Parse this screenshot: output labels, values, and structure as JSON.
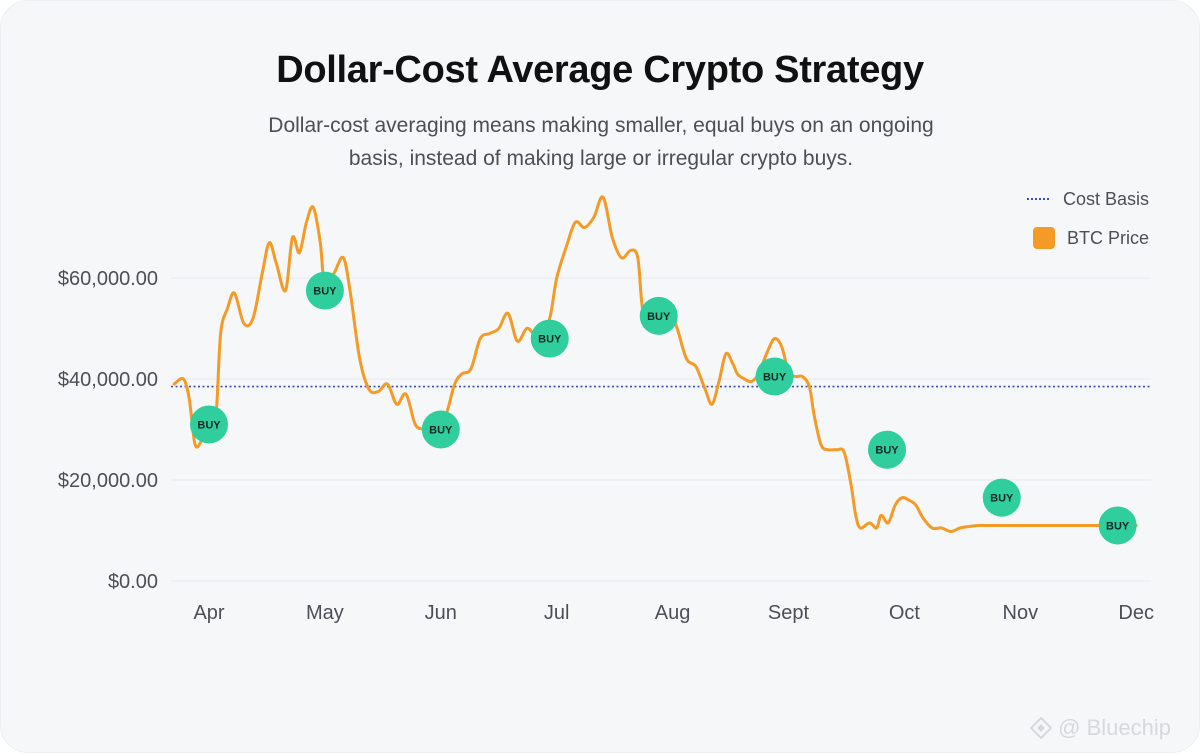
{
  "title": "Dollar-Cost Average Crypto Strategy",
  "subtitle": "Dollar-cost averaging means making smaller, equal buys on an ongoing basis, instead of making large or irregular crypto buys.",
  "legend": {
    "cost_basis": "Cost Basis",
    "btc_price": "BTC Price"
  },
  "watermark": "@ Bluechip",
  "colors": {
    "price_line": "#f39a27",
    "cost_basis_line": "#3b4fa8",
    "buy_marker": "#2fce9c",
    "grid": "#e6e9ee",
    "axis_text": "#4b4f56"
  },
  "chart_data": {
    "type": "line",
    "title": "Dollar-Cost Average Crypto Strategy",
    "xlabel": "",
    "ylabel": "",
    "x_tick_labels": [
      "Apr",
      "May",
      "Jun",
      "Jul",
      "Aug",
      "Sept",
      "Oct",
      "Nov",
      "Dec"
    ],
    "y_tick_labels": [
      "$0.00",
      "$20,000.00",
      "$40,000.00",
      "$60,000.00"
    ],
    "y_ticks": [
      0,
      20000,
      40000,
      60000
    ],
    "ylim": [
      0,
      80000
    ],
    "grid": "horizontal",
    "legend_position": "top-right",
    "cost_basis": 38500,
    "series": [
      {
        "name": "BTC Price",
        "points": [
          [
            -0.3,
            39000
          ],
          [
            -0.22,
            40000
          ],
          [
            -0.17,
            36000
          ],
          [
            -0.12,
            27000
          ],
          [
            -0.06,
            28000
          ],
          [
            0.0,
            31000
          ],
          [
            0.06,
            33000
          ],
          [
            0.1,
            49000
          ],
          [
            0.16,
            54000
          ],
          [
            0.22,
            57000
          ],
          [
            0.3,
            51000
          ],
          [
            0.38,
            52000
          ],
          [
            0.46,
            61000
          ],
          [
            0.52,
            67000
          ],
          [
            0.58,
            63000
          ],
          [
            0.66,
            57500
          ],
          [
            0.72,
            68000
          ],
          [
            0.78,
            65000
          ],
          [
            0.84,
            71000
          ],
          [
            0.9,
            74000
          ],
          [
            0.96,
            67000
          ],
          [
            1.0,
            58000
          ],
          [
            1.08,
            61000
          ],
          [
            1.16,
            64000
          ],
          [
            1.22,
            57000
          ],
          [
            1.3,
            44000
          ],
          [
            1.38,
            38000
          ],
          [
            1.46,
            37500
          ],
          [
            1.54,
            39000
          ],
          [
            1.62,
            35000
          ],
          [
            1.7,
            37000
          ],
          [
            1.78,
            31000
          ],
          [
            1.86,
            30000
          ],
          [
            1.94,
            29500
          ],
          [
            2.0,
            30000
          ],
          [
            2.06,
            34000
          ],
          [
            2.12,
            39000
          ],
          [
            2.18,
            41000
          ],
          [
            2.26,
            42000
          ],
          [
            2.34,
            48000
          ],
          [
            2.42,
            49000
          ],
          [
            2.5,
            50000
          ],
          [
            2.58,
            53000
          ],
          [
            2.66,
            47500
          ],
          [
            2.74,
            50000
          ],
          [
            2.8,
            49000
          ],
          [
            2.86,
            48000
          ],
          [
            2.94,
            52000
          ],
          [
            3.0,
            60000
          ],
          [
            3.08,
            66000
          ],
          [
            3.16,
            71000
          ],
          [
            3.24,
            70000
          ],
          [
            3.32,
            72000
          ],
          [
            3.4,
            76000
          ],
          [
            3.48,
            68000
          ],
          [
            3.56,
            64000
          ],
          [
            3.64,
            65500
          ],
          [
            3.7,
            64000
          ],
          [
            3.74,
            54000
          ],
          [
            3.8,
            52000
          ],
          [
            3.88,
            54000
          ],
          [
            3.96,
            55000
          ],
          [
            4.04,
            50000
          ],
          [
            4.12,
            44000
          ],
          [
            4.2,
            42500
          ],
          [
            4.28,
            38000
          ],
          [
            4.34,
            35000
          ],
          [
            4.4,
            39500
          ],
          [
            4.46,
            45000
          ],
          [
            4.52,
            43000
          ],
          [
            4.56,
            41000
          ],
          [
            4.62,
            40000
          ],
          [
            4.68,
            39500
          ],
          [
            4.74,
            41000
          ],
          [
            4.82,
            45500
          ],
          [
            4.88,
            48000
          ],
          [
            4.94,
            46500
          ],
          [
            5.0,
            41500
          ],
          [
            5.06,
            40500
          ],
          [
            5.12,
            40500
          ],
          [
            5.18,
            38500
          ],
          [
            5.22,
            33000
          ],
          [
            5.28,
            27000
          ],
          [
            5.34,
            26000
          ],
          [
            5.42,
            26000
          ],
          [
            5.48,
            25500
          ],
          [
            5.54,
            19000
          ],
          [
            5.58,
            13000
          ],
          [
            5.62,
            10500
          ],
          [
            5.7,
            11500
          ],
          [
            5.76,
            10500
          ],
          [
            5.8,
            13000
          ],
          [
            5.86,
            11500
          ],
          [
            5.92,
            15000
          ],
          [
            5.98,
            16500
          ],
          [
            6.04,
            16000
          ],
          [
            6.1,
            15000
          ],
          [
            6.16,
            12500
          ],
          [
            6.24,
            10500
          ],
          [
            6.32,
            10500
          ],
          [
            6.4,
            9800
          ],
          [
            6.48,
            10500
          ],
          [
            6.56,
            10800
          ],
          [
            6.64,
            11000
          ],
          [
            6.72,
            11000
          ],
          [
            6.8,
            11000
          ],
          [
            7.0,
            11000
          ],
          [
            7.2,
            11000
          ],
          [
            7.4,
            11000
          ],
          [
            7.6,
            11000
          ],
          [
            7.8,
            11000
          ],
          [
            8.0,
            11000
          ]
        ]
      }
    ],
    "buys": [
      {
        "x": 0.0,
        "y": 31000,
        "label": "BUY"
      },
      {
        "x": 1.0,
        "y": 57500,
        "label": "BUY"
      },
      {
        "x": 2.0,
        "y": 30000,
        "label": "BUY"
      },
      {
        "x": 2.94,
        "y": 48000,
        "label": "BUY"
      },
      {
        "x": 3.88,
        "y": 52500,
        "label": "BUY"
      },
      {
        "x": 4.88,
        "y": 40500,
        "label": "BUY"
      },
      {
        "x": 5.85,
        "y": 26000,
        "label": "BUY"
      },
      {
        "x": 6.84,
        "y": 16500,
        "label": "BUY"
      },
      {
        "x": 7.84,
        "y": 11000,
        "label": "BUY"
      }
    ]
  }
}
